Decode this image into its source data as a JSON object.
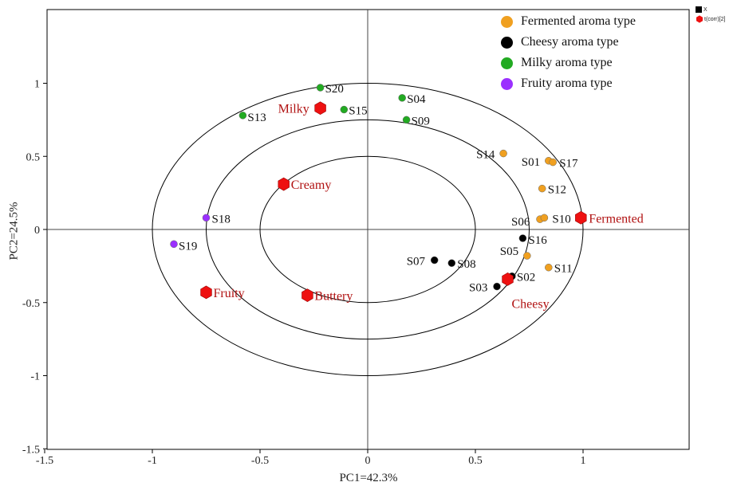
{
  "chart_data": {
    "type": "scatter",
    "title": "",
    "xlabel": "PC1=42.3%",
    "ylabel": "PC2=24.5%",
    "xlim": [
      -1.5,
      1.5
    ],
    "ylim": [
      -1.5,
      1.5
    ],
    "xticks": [
      "-1.5",
      "-1",
      "-0.5",
      "0",
      "0.5",
      "1"
    ],
    "xtick_values": [
      -1.5,
      -1,
      -0.5,
      0,
      0.5,
      1
    ],
    "yticks": [
      "1",
      "0.5",
      "0",
      "-0.5",
      "-1",
      "-1.5"
    ],
    "ytick_values": [
      1,
      0.5,
      0,
      -0.5,
      -1,
      -1.5
    ],
    "ellipse_radii": [
      0.5,
      0.75,
      1.0
    ],
    "grid": false,
    "legend_position": "top-right",
    "series": [
      {
        "name": "Fermented aroma type",
        "color": "#F0A020",
        "points": [
          {
            "label": "S14",
            "x": 0.63,
            "y": 0.52
          },
          {
            "label": "S01",
            "x": 0.84,
            "y": 0.47
          },
          {
            "label": "S17",
            "x": 0.86,
            "y": 0.46
          },
          {
            "label": "S12",
            "x": 0.81,
            "y": 0.28
          },
          {
            "label": "S06",
            "x": 0.8,
            "y": 0.07
          },
          {
            "label": "S10",
            "x": 0.82,
            "y": 0.08
          },
          {
            "label": "S05",
            "x": 0.74,
            "y": -0.18
          },
          {
            "label": "S11",
            "x": 0.84,
            "y": -0.26
          }
        ]
      },
      {
        "name": "Cheesy aroma type",
        "color": "#000000",
        "points": [
          {
            "label": "S16",
            "x": 0.72,
            "y": -0.06
          },
          {
            "label": "S07",
            "x": 0.31,
            "y": -0.21
          },
          {
            "label": "S08",
            "x": 0.39,
            "y": -0.23
          },
          {
            "label": "S02",
            "x": 0.67,
            "y": -0.32
          },
          {
            "label": "S03",
            "x": 0.6,
            "y": -0.39
          }
        ]
      },
      {
        "name": "Milky aroma type",
        "color": "#22AA22",
        "points": [
          {
            "label": "S20",
            "x": -0.22,
            "y": 0.97
          },
          {
            "label": "S04",
            "x": 0.16,
            "y": 0.9
          },
          {
            "label": "S13",
            "x": -0.58,
            "y": 0.78
          },
          {
            "label": "S15",
            "x": -0.11,
            "y": 0.82
          },
          {
            "label": "S09",
            "x": 0.18,
            "y": 0.75
          }
        ]
      },
      {
        "name": "Fruity aroma type",
        "color": "#9B30FF",
        "points": [
          {
            "label": "S18",
            "x": -0.75,
            "y": 0.08
          },
          {
            "label": "S19",
            "x": -0.9,
            "y": -0.1
          }
        ]
      }
    ],
    "variables": {
      "color": "#EE1111",
      "points": [
        {
          "label": "Milky",
          "x": -0.22,
          "y": 0.83
        },
        {
          "label": "Creamy",
          "x": -0.39,
          "y": 0.31
        },
        {
          "label": "Fermented",
          "x": 0.99,
          "y": 0.08
        },
        {
          "label": "Cheesy",
          "x": 0.65,
          "y": -0.34
        },
        {
          "label": "Fruity",
          "x": -0.75,
          "y": -0.43
        },
        {
          "label": "Buttery",
          "x": -0.28,
          "y": -0.45
        }
      ]
    },
    "mini_legend": [
      "X",
      "t(corr)[2]"
    ]
  }
}
